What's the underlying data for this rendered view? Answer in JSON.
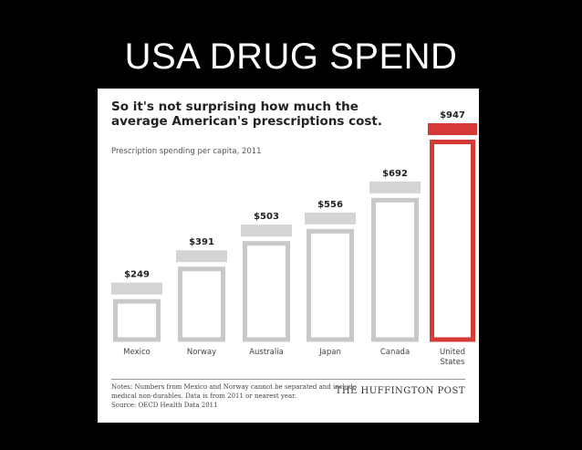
{
  "slide": {
    "title": "USA DRUG SPEND"
  },
  "card": {
    "headline": "So it's not surprising how much the average American's prescriptions cost.",
    "subtitle": "Prescription spending per capita, 2011",
    "notes": [
      "Notes: Numbers from Mexico and Norway cannot be separated and include",
      "medical non-durables. Data is from 2011 or nearest year.",
      "Source: OECD Health Data 2011"
    ],
    "brand": "THE HUFFINGTON POST"
  },
  "colors": {
    "gray": "#d4d4d4",
    "gray_dark": "#c8c8c8",
    "red": "#d63a36",
    "background": "#000000",
    "card": "#ffffff"
  },
  "chart_data": {
    "type": "bar",
    "title": "So it's not surprising how much the average American's prescriptions cost.",
    "subtitle": "Prescription spending per capita, 2011",
    "categories": [
      "Mexico",
      "Norway",
      "Australia",
      "Japan",
      "Canada",
      "United States"
    ],
    "category_lines": [
      [
        "Mexico"
      ],
      [
        "Norway"
      ],
      [
        "Australia"
      ],
      [
        "Japan"
      ],
      [
        "Canada"
      ],
      [
        "United",
        "States"
      ]
    ],
    "values": [
      249,
      391,
      503,
      556,
      692,
      947
    ],
    "value_labels": [
      "$249",
      "$391",
      "$503",
      "$556",
      "$692",
      "$947"
    ],
    "highlight_index": 5,
    "ylim": [
      0,
      947
    ],
    "grid": false,
    "legend": "none",
    "mark_style": "pill-bottle"
  }
}
